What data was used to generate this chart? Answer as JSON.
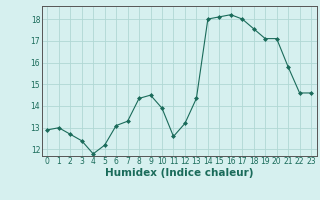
{
  "x": [
    0,
    1,
    2,
    3,
    4,
    5,
    6,
    7,
    8,
    9,
    10,
    11,
    12,
    13,
    14,
    15,
    16,
    17,
    18,
    19,
    20,
    21,
    22,
    23
  ],
  "y": [
    12.9,
    13.0,
    12.7,
    12.4,
    11.8,
    12.2,
    13.1,
    13.3,
    14.35,
    14.5,
    13.9,
    12.6,
    13.2,
    14.35,
    18.0,
    18.1,
    18.2,
    18.0,
    17.55,
    17.1,
    17.1,
    15.8,
    14.6,
    14.6
  ],
  "xlabel": "Humidex (Indice chaleur)",
  "ylim": [
    11.7,
    18.6
  ],
  "xlim": [
    -0.5,
    23.5
  ],
  "line_color": "#1a6b5a",
  "marker_color": "#1a6b5a",
  "bg_color": "#d6f0ef",
  "grid_color": "#b0d8d4",
  "xlabel_fontsize": 7.5,
  "tick_fontsize": 5.5,
  "yticks": [
    12,
    13,
    14,
    15,
    16,
    17,
    18
  ],
  "xticks": [
    0,
    1,
    2,
    3,
    4,
    5,
    6,
    7,
    8,
    9,
    10,
    11,
    12,
    13,
    14,
    15,
    16,
    17,
    18,
    19,
    20,
    21,
    22,
    23
  ]
}
